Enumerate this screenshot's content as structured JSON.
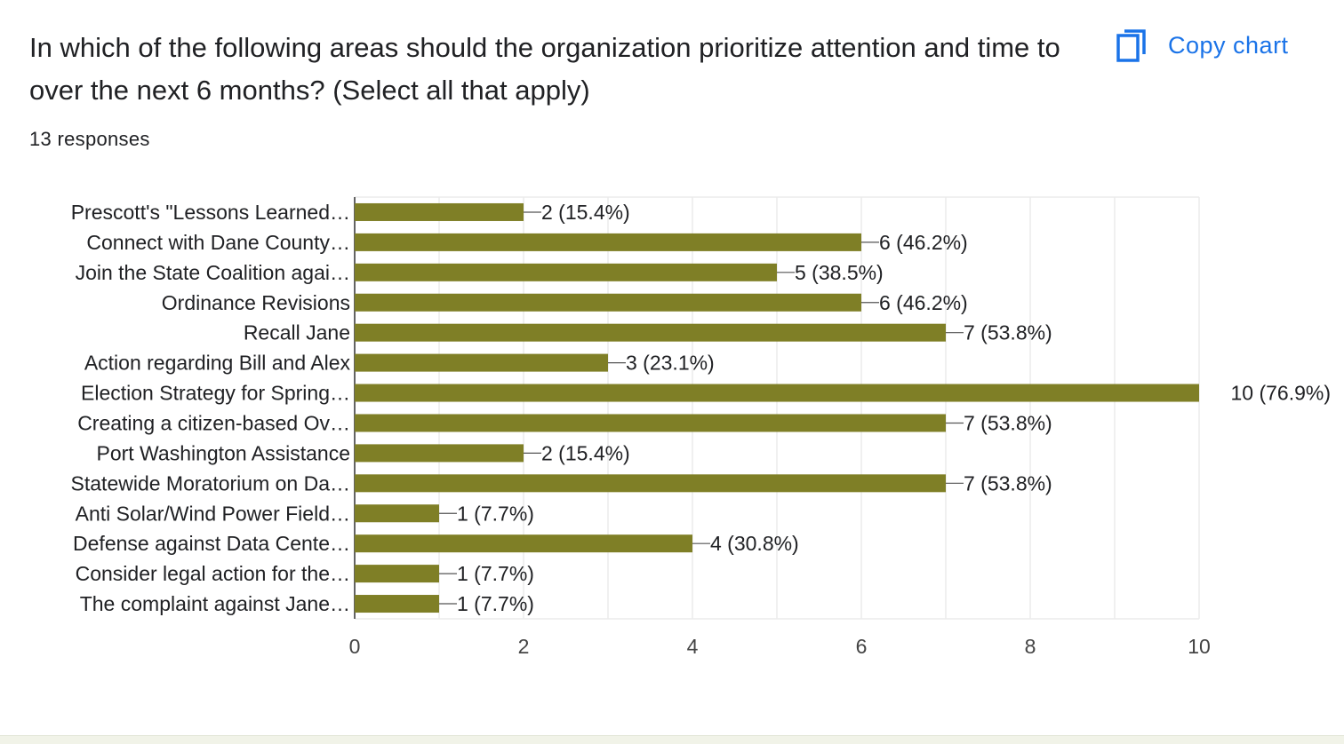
{
  "question": {
    "title": "In which of the following areas should the organization prioritize attention and time to over the next 6 months? (Select all that apply)",
    "responses": "13 responses"
  },
  "actions": {
    "copy_chart_label": "Copy chart",
    "copy_icon": "copy-icon"
  },
  "colors": {
    "bar": "#7f7f26",
    "grid": "#ebebeb",
    "accent": "#1a73e8",
    "text": "#202124"
  },
  "chart_data": {
    "type": "bar",
    "orientation": "horizontal",
    "categories": [
      "Prescott's \"Lessons Learned…",
      "Connect with Dane County…",
      "Join the State Coalition agai…",
      "Ordinance Revisions",
      "Recall Jane",
      "Action regarding Bill and Alex",
      "Election Strategy for Spring…",
      "Creating a citizen-based Ov…",
      "Port Washington Assistance",
      "Statewide Moratorium on Da…",
      "Anti Solar/Wind Power Field…",
      "Defense against Data Cente…",
      "Consider legal action for the…",
      "The complaint against Jane…"
    ],
    "values": [
      2,
      6,
      5,
      6,
      7,
      3,
      10,
      7,
      2,
      7,
      1,
      4,
      1,
      1
    ],
    "data_labels": [
      "2 (15.4%)",
      "6 (46.2%)",
      "5 (38.5%)",
      "6 (46.2%)",
      "7 (53.8%)",
      "3 (23.1%)",
      "10 (76.9%)",
      "7 (53.8%)",
      "2 (15.4%)",
      "7 (53.8%)",
      "1 (7.7%)",
      "4 (30.8%)",
      "1 (7.7%)",
      "1 (7.7%)"
    ],
    "xlim": [
      0,
      10
    ],
    "x_ticks": [
      "0",
      "2",
      "4",
      "6",
      "8",
      "10"
    ],
    "grid": true,
    "legend": "none"
  }
}
